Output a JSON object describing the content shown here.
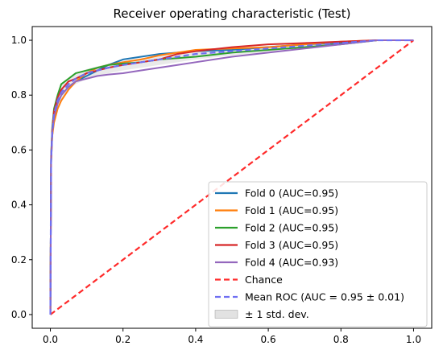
{
  "chart_data": {
    "type": "line",
    "title": "Receiver operating characteristic (Test)",
    "xlabel": "",
    "ylabel": "",
    "xlim": [
      -0.05,
      1.05
    ],
    "ylim": [
      -0.05,
      1.05
    ],
    "xticks": [
      "0.0",
      "0.2",
      "0.4",
      "0.6",
      "0.8",
      "1.0"
    ],
    "yticks": [
      "0.0",
      "0.2",
      "0.4",
      "0.6",
      "0.8",
      "1.0"
    ],
    "grid": false,
    "legend_position": "lower-right",
    "series": [
      {
        "name": "Fold 0 (AUC=0.95)",
        "color": "#1f77b4",
        "style": "solid",
        "x": [
          0,
          0.002,
          0.005,
          0.01,
          0.02,
          0.03,
          0.05,
          0.07,
          0.1,
          0.13,
          0.16,
          0.2,
          0.25,
          0.3,
          0.35,
          0.4,
          0.5,
          0.6,
          0.7,
          0.8,
          0.9,
          1.0
        ],
        "y": [
          0,
          0.55,
          0.65,
          0.72,
          0.77,
          0.8,
          0.83,
          0.85,
          0.87,
          0.89,
          0.91,
          0.93,
          0.94,
          0.95,
          0.955,
          0.96,
          0.965,
          0.975,
          0.985,
          0.99,
          1.0,
          1.0
        ]
      },
      {
        "name": "Fold 1 (AUC=0.95)",
        "color": "#ff7f0e",
        "style": "solid",
        "x": [
          0,
          0.002,
          0.005,
          0.01,
          0.02,
          0.03,
          0.05,
          0.07,
          0.1,
          0.13,
          0.16,
          0.2,
          0.25,
          0.3,
          0.35,
          0.4,
          0.5,
          0.6,
          0.7,
          0.8,
          0.9,
          1.0
        ],
        "y": [
          0,
          0.55,
          0.65,
          0.7,
          0.75,
          0.78,
          0.82,
          0.85,
          0.88,
          0.9,
          0.91,
          0.92,
          0.93,
          0.945,
          0.955,
          0.965,
          0.97,
          0.975,
          0.985,
          0.995,
          1.0,
          1.0
        ]
      },
      {
        "name": "Fold 2 (AUC=0.95)",
        "color": "#2ca02c",
        "style": "solid",
        "x": [
          0,
          0.002,
          0.005,
          0.01,
          0.02,
          0.03,
          0.05,
          0.07,
          0.1,
          0.13,
          0.16,
          0.2,
          0.25,
          0.3,
          0.35,
          0.4,
          0.5,
          0.6,
          0.7,
          0.8,
          0.9,
          1.0
        ],
        "y": [
          0,
          0.58,
          0.68,
          0.75,
          0.8,
          0.84,
          0.86,
          0.88,
          0.89,
          0.9,
          0.91,
          0.915,
          0.92,
          0.93,
          0.935,
          0.94,
          0.955,
          0.965,
          0.975,
          0.985,
          1.0,
          1.0
        ]
      },
      {
        "name": "Fold 3 (AUC=0.95)",
        "color": "#d62728",
        "style": "solid",
        "x": [
          0,
          0.002,
          0.005,
          0.01,
          0.02,
          0.03,
          0.05,
          0.07,
          0.1,
          0.13,
          0.16,
          0.2,
          0.25,
          0.3,
          0.35,
          0.4,
          0.5,
          0.6,
          0.7,
          0.8,
          0.9,
          1.0
        ],
        "y": [
          0,
          0.57,
          0.67,
          0.74,
          0.79,
          0.82,
          0.85,
          0.86,
          0.88,
          0.89,
          0.9,
          0.91,
          0.92,
          0.93,
          0.95,
          0.96,
          0.975,
          0.985,
          0.99,
          0.995,
          1.0,
          1.0
        ]
      },
      {
        "name": "Fold 4 (AUC=0.93)",
        "color": "#9467bd",
        "style": "solid",
        "x": [
          0,
          0.002,
          0.005,
          0.01,
          0.02,
          0.03,
          0.05,
          0.07,
          0.1,
          0.13,
          0.16,
          0.2,
          0.25,
          0.3,
          0.35,
          0.4,
          0.5,
          0.6,
          0.7,
          0.8,
          0.9,
          1.0
        ],
        "y": [
          0,
          0.56,
          0.66,
          0.72,
          0.77,
          0.8,
          0.83,
          0.85,
          0.86,
          0.87,
          0.875,
          0.88,
          0.89,
          0.9,
          0.91,
          0.92,
          0.94,
          0.955,
          0.97,
          0.985,
          1.0,
          1.0
        ]
      },
      {
        "name": "Chance",
        "color": "#ff2a2a",
        "style": "dashed",
        "x": [
          0,
          1
        ],
        "y": [
          0,
          1
        ]
      },
      {
        "name": "Mean ROC (AUC = 0.95 ± 0.01)",
        "color": "#6f6ff2",
        "style": "dashed",
        "x": [
          0,
          0.002,
          0.005,
          0.01,
          0.02,
          0.03,
          0.05,
          0.07,
          0.1,
          0.13,
          0.16,
          0.2,
          0.25,
          0.3,
          0.35,
          0.4,
          0.5,
          0.6,
          0.7,
          0.8,
          0.9,
          1.0
        ],
        "y": [
          0,
          0.56,
          0.66,
          0.73,
          0.78,
          0.81,
          0.84,
          0.86,
          0.88,
          0.89,
          0.9,
          0.91,
          0.92,
          0.93,
          0.94,
          0.95,
          0.96,
          0.97,
          0.98,
          0.99,
          1.0,
          1.0
        ]
      }
    ],
    "band": {
      "name": "± 1 std. dev.",
      "color": "#bfbfbf",
      "x": [
        0,
        0.002,
        0.005,
        0.01,
        0.02,
        0.03,
        0.05,
        0.07,
        0.1,
        0.13,
        0.16,
        0.2,
        0.25,
        0.3,
        0.35,
        0.4,
        0.5,
        0.6,
        0.7,
        0.8,
        0.9,
        1.0
      ],
      "upper": [
        0,
        0.58,
        0.68,
        0.75,
        0.8,
        0.84,
        0.86,
        0.88,
        0.895,
        0.905,
        0.915,
        0.925,
        0.935,
        0.945,
        0.955,
        0.965,
        0.97,
        0.98,
        0.99,
        0.995,
        1.0,
        1.0
      ],
      "lower": [
        0,
        0.54,
        0.64,
        0.71,
        0.76,
        0.78,
        0.82,
        0.84,
        0.86,
        0.87,
        0.88,
        0.89,
        0.9,
        0.91,
        0.92,
        0.93,
        0.945,
        0.955,
        0.97,
        0.985,
        1.0,
        1.0
      ]
    }
  }
}
